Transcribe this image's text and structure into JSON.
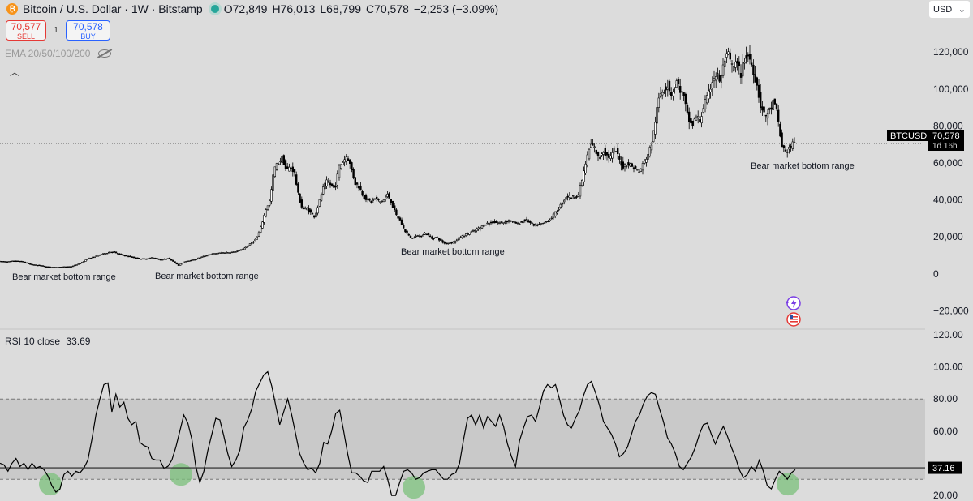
{
  "header": {
    "coin_icon": "bitcoin-icon",
    "title": "Bitcoin / U.S. Dollar · 1W · Bitstamp",
    "open": "O72,849",
    "high": "H76,013",
    "low": "L68,799",
    "close": "C70,578",
    "change": "−2,253 (−3.09%)"
  },
  "trade": {
    "sell_price": "70,577",
    "sell_label": "SELL",
    "spread": "1",
    "buy_price": "70,578",
    "buy_label": "BUY"
  },
  "indicators": {
    "ema_label": "EMA 20/50/100/200",
    "rsi_label": "RSI 10 close",
    "rsi_value": "33.69"
  },
  "currency": {
    "label": "USD",
    "arrow": "⌄"
  },
  "price_tag": {
    "symbol": "BTCUSD",
    "price": "70,578",
    "countdown": "1d 16h"
  },
  "rsi_tag": "37.16",
  "colors": {
    "background": "#dcdcdc",
    "band": "#c9c9c9",
    "highlight": "#7bc07b",
    "candle": "#000000"
  },
  "chart_data": [
    {
      "type": "candlestick",
      "title": "Bitcoin / U.S. Dollar · 1W · Bitstamp",
      "y_ticks": [
        120000,
        100000,
        80000,
        60000,
        40000,
        20000,
        0,
        -20000
      ],
      "y_tick_labels": [
        "120,000",
        "100,000",
        "80,000",
        "60,000",
        "40,000",
        "20,000",
        "0",
        "−20,000"
      ],
      "ylim": [
        -22000,
        128000
      ],
      "last_price": 70578,
      "close_path": [
        [
          0,
          6800
        ],
        [
          10,
          6500
        ],
        [
          20,
          7000
        ],
        [
          30,
          6600
        ],
        [
          40,
          5000
        ],
        [
          50,
          4600
        ],
        [
          60,
          3800
        ],
        [
          70,
          3600
        ],
        [
          80,
          3800
        ],
        [
          90,
          4000
        ],
        [
          100,
          5500
        ],
        [
          110,
          8000
        ],
        [
          120,
          9500
        ],
        [
          130,
          11000
        ],
        [
          140,
          12000
        ],
        [
          150,
          10500
        ],
        [
          160,
          9500
        ],
        [
          170,
          8500
        ],
        [
          180,
          8000
        ],
        [
          190,
          8800
        ],
        [
          200,
          7500
        ],
        [
          210,
          8500
        ],
        [
          215,
          7000
        ],
        [
          222,
          4500
        ],
        [
          230,
          6800
        ],
        [
          240,
          7500
        ],
        [
          250,
          9000
        ],
        [
          260,
          10500
        ],
        [
          270,
          11200
        ],
        [
          280,
          11500
        ],
        [
          290,
          11800
        ],
        [
          300,
          13000
        ],
        [
          310,
          16000
        ],
        [
          318,
          19000
        ],
        [
          322,
          23000
        ],
        [
          326,
          29000
        ],
        [
          330,
          35000
        ],
        [
          335,
          40000
        ],
        [
          340,
          57000
        ],
        [
          345,
          60000
        ],
        [
          350,
          63000
        ],
        [
          355,
          56000
        ],
        [
          360,
          58000
        ],
        [
          365,
          55000
        ],
        [
          370,
          42000
        ],
        [
          375,
          35000
        ],
        [
          380,
          35500
        ],
        [
          385,
          33000
        ],
        [
          390,
          31000
        ],
        [
          395,
          38000
        ],
        [
          400,
          46000
        ],
        [
          405,
          50000
        ],
        [
          410,
          48000
        ],
        [
          415,
          46000
        ],
        [
          420,
          58000
        ],
        [
          425,
          61000
        ],
        [
          430,
          64000
        ],
        [
          435,
          57000
        ],
        [
          440,
          49000
        ],
        [
          445,
          47000
        ],
        [
          450,
          42000
        ],
        [
          455,
          40000
        ],
        [
          460,
          39000
        ],
        [
          465,
          41000
        ],
        [
          470,
          39000
        ],
        [
          475,
          40000
        ],
        [
          480,
          43000
        ],
        [
          485,
          38000
        ],
        [
          490,
          32000
        ],
        [
          495,
          29000
        ],
        [
          500,
          24000
        ],
        [
          505,
          21000
        ],
        [
          510,
          19000
        ],
        [
          515,
          21000
        ],
        [
          520,
          20000
        ],
        [
          525,
          22000
        ],
        [
          530,
          21000
        ],
        [
          535,
          19000
        ],
        [
          540,
          20000
        ],
        [
          545,
          18000
        ],
        [
          550,
          16500
        ],
        [
          560,
          17000
        ],
        [
          570,
          20000
        ],
        [
          580,
          22000
        ],
        [
          590,
          24000
        ],
        [
          600,
          27000
        ],
        [
          610,
          28000
        ],
        [
          620,
          27500
        ],
        [
          630,
          29000
        ],
        [
          640,
          27000
        ],
        [
          650,
          29500
        ],
        [
          660,
          26000
        ],
        [
          670,
          27000
        ],
        [
          680,
          29500
        ],
        [
          690,
          35000
        ],
        [
          700,
          42000
        ],
        [
          710,
          41500
        ],
        [
          715,
          43000
        ],
        [
          720,
          52000
        ],
        [
          725,
          62000
        ],
        [
          730,
          70000
        ],
        [
          735,
          68000
        ],
        [
          740,
          62000
        ],
        [
          745,
          67000
        ],
        [
          750,
          64000
        ],
        [
          755,
          63000
        ],
        [
          760,
          68000
        ],
        [
          765,
          62000
        ],
        [
          770,
          58000
        ],
        [
          775,
          60000
        ],
        [
          780,
          58500
        ],
        [
          785,
          57000
        ],
        [
          790,
          55000
        ],
        [
          795,
          60000
        ],
        [
          800,
          64000
        ],
        [
          805,
          70000
        ],
        [
          810,
          84000
        ],
        [
          815,
          97000
        ],
        [
          820,
          100000
        ],
        [
          825,
          102000
        ],
        [
          830,
          97000
        ],
        [
          835,
          105000
        ],
        [
          840,
          100000
        ],
        [
          845,
          95000
        ],
        [
          850,
          84000
        ],
        [
          855,
          80000
        ],
        [
          860,
          85000
        ],
        [
          865,
          83000
        ],
        [
          870,
          92000
        ],
        [
          875,
          96000
        ],
        [
          880,
          105000
        ],
        [
          885,
          108000
        ],
        [
          890,
          104000
        ],
        [
          895,
          116000
        ],
        [
          900,
          118000
        ],
        [
          905,
          111000
        ],
        [
          910,
          114000
        ],
        [
          915,
          108000
        ],
        [
          920,
          117000
        ],
        [
          925,
          118000
        ],
        [
          930,
          111000
        ],
        [
          935,
          102000
        ],
        [
          940,
          90000
        ],
        [
          945,
          85000
        ],
        [
          950,
          88000
        ],
        [
          955,
          93000
        ],
        [
          960,
          87000
        ],
        [
          965,
          70000
        ],
        [
          970,
          66000
        ],
        [
          975,
          68000
        ],
        [
          980,
          70578
        ]
      ],
      "annotations": [
        {
          "x": 15,
          "text": "Bear market bottom range"
        },
        {
          "x": 191,
          "text": "Bear market bottom range"
        },
        {
          "x": 494,
          "text": "Bear market bottom range"
        },
        {
          "x": 925,
          "text": "Bear market bottom range"
        }
      ]
    },
    {
      "type": "line",
      "title": "RSI 10 close",
      "y_ticks": [
        120,
        100,
        80,
        60,
        40,
        20
      ],
      "y_tick_labels": [
        "120.00",
        "100.00",
        "80.00",
        "60.00",
        "",
        "20.00"
      ],
      "ylim": [
        17,
        122
      ],
      "band": [
        30,
        80
      ],
      "reference_line": 37.16,
      "last_value": 33.69,
      "x_max": 980,
      "values": [
        40,
        39,
        35,
        40,
        43,
        38,
        40,
        36,
        40,
        37,
        38,
        36,
        32,
        26,
        22,
        24,
        33,
        35,
        32,
        35,
        34,
        37,
        42,
        55,
        70,
        80,
        89,
        90,
        72,
        83,
        75,
        78,
        68,
        64,
        66,
        53,
        51,
        50,
        43,
        42,
        42,
        37,
        38,
        42,
        50,
        60,
        70,
        65,
        55,
        38,
        28,
        35,
        48,
        58,
        68,
        67,
        57,
        46,
        38,
        42,
        48,
        62,
        67,
        74,
        85,
        90,
        95,
        97,
        88,
        76,
        64,
        72,
        80,
        70,
        58,
        46,
        40,
        36,
        37,
        34,
        40,
        53,
        52,
        60,
        71,
        73,
        60,
        46,
        34,
        34,
        32,
        29,
        28,
        35,
        35,
        35,
        38,
        30,
        20,
        20,
        28,
        35,
        36,
        34,
        30,
        31,
        34,
        35,
        36,
        36,
        33,
        30,
        30,
        33,
        34,
        40,
        55,
        68,
        70,
        64,
        70,
        62,
        69,
        66,
        63,
        70,
        63,
        52,
        44,
        38,
        54,
        62,
        69,
        70,
        66,
        75,
        85,
        89,
        87,
        89,
        80,
        70,
        64,
        62,
        68,
        73,
        82,
        89,
        91,
        84,
        76,
        66,
        62,
        58,
        52,
        44,
        46,
        50,
        58,
        66,
        70,
        77,
        82,
        84,
        83,
        74,
        66,
        56,
        52,
        46,
        38,
        36,
        40,
        44,
        50,
        58,
        64,
        65,
        58,
        52,
        58,
        63,
        57,
        50,
        44,
        36,
        31,
        33,
        38,
        35,
        42,
        35,
        26,
        24,
        30,
        35,
        33,
        30,
        34,
        36
      ],
      "highlights": [
        {
          "x": 62,
          "value": 26
        },
        {
          "x": 223,
          "value": 32
        },
        {
          "x": 510,
          "value": 24
        },
        {
          "x": 971,
          "value": 26
        }
      ]
    }
  ]
}
